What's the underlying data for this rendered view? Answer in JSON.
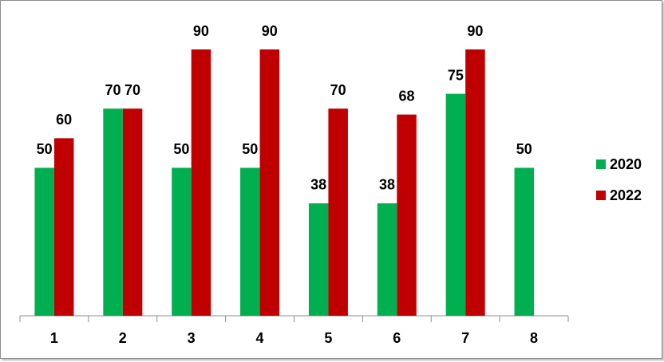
{
  "chart_data": {
    "type": "bar",
    "categories": [
      "1",
      "2",
      "3",
      "4",
      "5",
      "6",
      "7",
      "8"
    ],
    "series": [
      {
        "name": "2020",
        "color": "#00b050",
        "values": [
          50,
          70,
          50,
          50,
          38,
          38,
          75,
          50
        ]
      },
      {
        "name": "2022",
        "color": "#c00000",
        "values": [
          60,
          70,
          90,
          90,
          70,
          68,
          90,
          null
        ]
      }
    ],
    "ylim": [
      0,
      90
    ],
    "legend": "right"
  }
}
